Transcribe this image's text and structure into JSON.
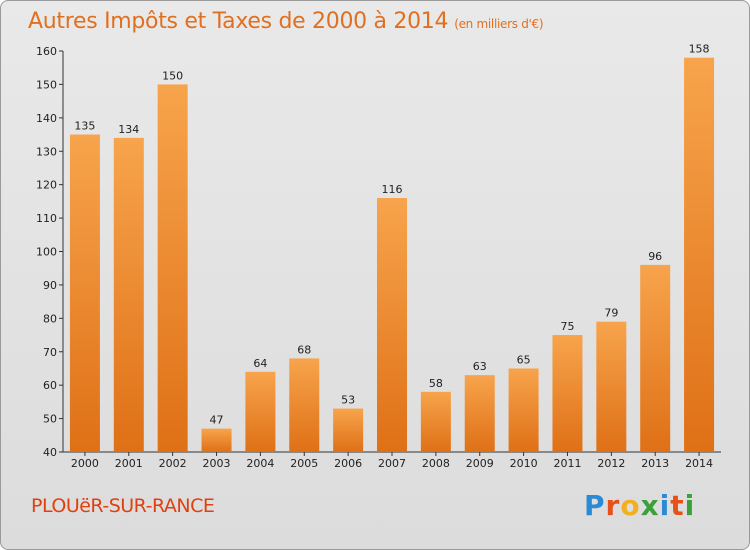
{
  "chart_data": {
    "type": "bar",
    "title": "Autres Impôts et Taxes de 2000 à 2014",
    "subtitle": "(en milliers d'€)",
    "categories": [
      "2000",
      "2001",
      "2002",
      "2003",
      "2004",
      "2005",
      "2006",
      "2007",
      "2008",
      "2009",
      "2010",
      "2011",
      "2012",
      "2013",
      "2014"
    ],
    "values": [
      135,
      134,
      150,
      47,
      64,
      68,
      53,
      116,
      58,
      63,
      65,
      75,
      79,
      96,
      158
    ],
    "ylim": [
      40,
      160
    ],
    "yticks": [
      40,
      50,
      60,
      70,
      80,
      90,
      100,
      110,
      120,
      130,
      140,
      150,
      160
    ],
    "grid": false,
    "bar_color": "#f0902a"
  },
  "footer": {
    "commune": "PLOUëR-SUR-RANCE",
    "logo_letters": [
      {
        "char": "P",
        "color": "#2a8ad4"
      },
      {
        "char": "r",
        "color": "#e8501a"
      },
      {
        "char": "o",
        "color": "#f0b020"
      },
      {
        "char": "x",
        "color": "#3aa03a"
      },
      {
        "char": "i",
        "color": "#2a8ad4"
      },
      {
        "char": "t",
        "color": "#e8501a"
      },
      {
        "char": "i",
        "color": "#3aa03a"
      }
    ]
  }
}
